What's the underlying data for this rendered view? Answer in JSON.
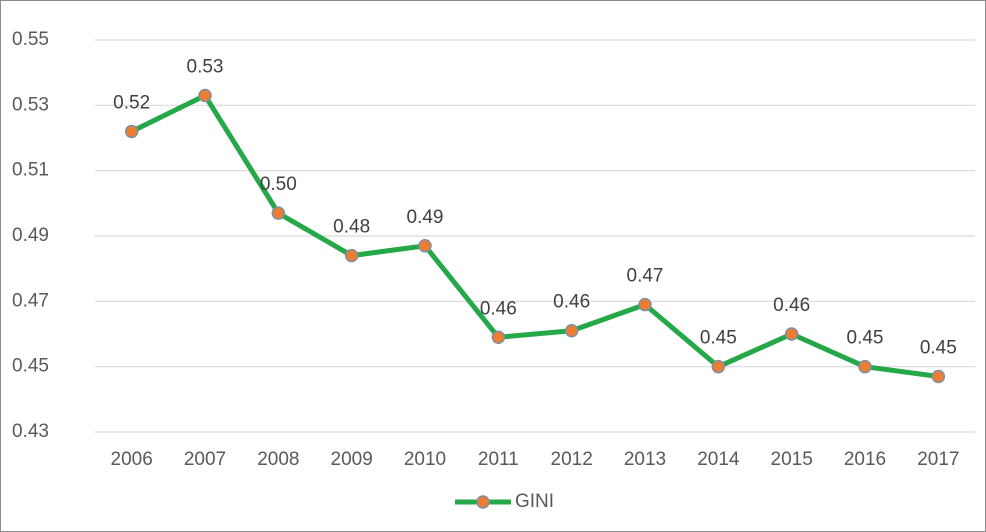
{
  "chart_data": {
    "type": "line",
    "categories": [
      "2006",
      "2007",
      "2008",
      "2009",
      "2010",
      "2011",
      "2012",
      "2013",
      "2014",
      "2015",
      "2016",
      "2017"
    ],
    "series": [
      {
        "name": "GINI",
        "color": "#25a848",
        "marker_color": "#ed7d31",
        "values": [
          0.522,
          0.533,
          0.497,
          0.484,
          0.487,
          0.459,
          0.461,
          0.469,
          0.45,
          0.46,
          0.45,
          0.447
        ],
        "value_labels": [
          "0.52",
          "0.53",
          "0.50",
          "0.48",
          "0.49",
          "0.46",
          "0.46",
          "0.47",
          "0.45",
          "0.46",
          "0.45",
          "0.45"
        ]
      }
    ],
    "ylim": [
      0.43,
      0.55
    ],
    "yticks": [
      0.43,
      0.45,
      0.47,
      0.49,
      0.51,
      0.53,
      0.55
    ],
    "grid": true,
    "legend": "bottom"
  }
}
